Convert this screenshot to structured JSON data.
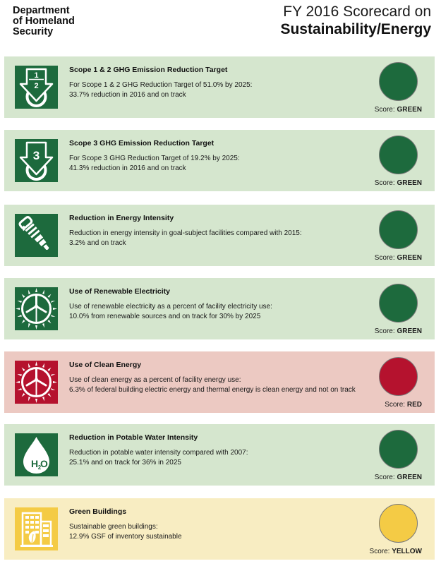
{
  "header": {
    "agency_lines": [
      "Department",
      "of Homeland",
      "Security"
    ],
    "title_line1": "FY 2016 Scorecard on",
    "title_line2": "Sustainability/Energy"
  },
  "colors": {
    "green_status": "#1d6a3d",
    "red_status": "#b5122e",
    "yellow_status": "#f4cb45",
    "green_card": "#d5e6ce",
    "red_card": "#ecc9c2",
    "yellow_card": "#f8edc2"
  },
  "score_label": "Score:",
  "cards": [
    {
      "title": "Scope 1 & 2 GHG Emission Reduction Target",
      "desc": [
        "For Scope 1 & 2 GHG Reduction Target of 51.0% by 2025:",
        "33.7% reduction in 2016 and on track"
      ],
      "score": "GREEN",
      "icon": "ghg-scope-1-2-icon",
      "icon_text": "1&2"
    },
    {
      "title": "Scope 3 GHG Emission Reduction Target",
      "desc": [
        "For Scope 3 GHG Reduction Target of 19.2% by 2025:",
        "41.3% reduction in 2016 and on track"
      ],
      "score": "GREEN",
      "icon": "ghg-scope-3-icon",
      "icon_text": "3"
    },
    {
      "title": "Reduction in Energy Intensity",
      "desc": [
        "Reduction in energy intensity in goal-subject facilities compared with 2015:",
        "3.2% and on track"
      ],
      "score": "GREEN",
      "icon": "lightbulb-icon"
    },
    {
      "title": "Use of Renewable Electricity",
      "desc": [
        "Use of renewable electricity as a percent of facility electricity use:",
        "10.0% from renewable sources and on track for 30% by 2025"
      ],
      "score": "GREEN",
      "icon": "wind-turbine-sun-icon"
    },
    {
      "title": "Use of Clean Energy",
      "desc": [
        "Use of clean energy as a percent of facility energy use:",
        "6.3% of federal building electric energy and thermal energy is clean energy and not on track"
      ],
      "score": "RED",
      "icon": "wind-turbine-sun-icon"
    },
    {
      "title": "Reduction in Potable Water Intensity",
      "desc": [
        "Reduction in potable water intensity compared with 2007:",
        "25.1% and on track for 36% in 2025"
      ],
      "score": "GREEN",
      "icon": "water-drop-icon",
      "icon_text": "H2O"
    },
    {
      "title": "Green Buildings",
      "desc": [
        "Sustainable green buildings:",
        "12.9% GSF of inventory sustainable"
      ],
      "score": "YELLOW",
      "icon": "green-building-icon"
    }
  ]
}
